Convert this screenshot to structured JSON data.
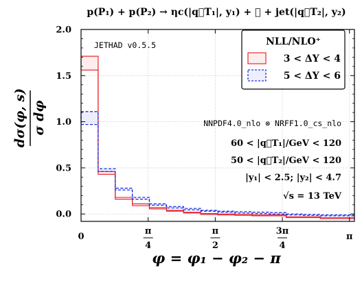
{
  "chart_data": {
    "type": "histogram-step",
    "title": "p(P₁) + p(P₂) → ηc(|q⃗T₁|, y₁) + 𝒳 + jet(|q⃗T₂|, y₂)",
    "xlabel": "φ = φ₁ − φ₂ − π",
    "ylabel_num": "dσ(φ, s)",
    "ylabel_den": "σ dφ",
    "xlim": [
      0,
      3.2
    ],
    "ylim": [
      -0.08,
      2.0
    ],
    "yticks": [
      0.0,
      0.5,
      1.0,
      1.5,
      2.0
    ],
    "ytick_labels": [
      "0.0",
      "0.5",
      "1.0",
      "1.5",
      "2.0"
    ],
    "xticks": [
      {
        "value": 0,
        "num": "0",
        "den": ""
      },
      {
        "value": 0.7854,
        "num": "π",
        "den": "4"
      },
      {
        "value": 1.5708,
        "num": "π",
        "den": "2"
      },
      {
        "value": 2.3562,
        "num": "3π",
        "den": "4"
      },
      {
        "value": 3.1416,
        "num": "π",
        "den": ""
      }
    ],
    "grid": true,
    "bin_edges": [
      0,
      0.2,
      0.4,
      0.6,
      0.8,
      1.0,
      1.2,
      1.4,
      1.6,
      1.8,
      2.0,
      2.2,
      2.4,
      2.6,
      2.8,
      3.0,
      3.2
    ],
    "legend_title": "NLL/NLO⁺",
    "legend_position": "top-right",
    "series": [
      {
        "name": "3 < ΔY < 4",
        "color": "#e8141e",
        "line": "solid",
        "upper": [
          1.71,
          0.46,
          0.18,
          0.11,
          0.07,
          0.04,
          0.02,
          0.005,
          0.0,
          -0.005,
          -0.01,
          -0.01,
          -0.03,
          -0.03,
          -0.04,
          -0.04
        ],
        "lower": [
          1.56,
          0.43,
          0.16,
          0.09,
          0.055,
          0.03,
          0.01,
          -0.005,
          -0.01,
          -0.015,
          -0.02,
          -0.02,
          -0.04,
          -0.04,
          -0.05,
          -0.05
        ]
      },
      {
        "name": "5 < ΔY < 6",
        "color": "#1f2fe6",
        "line": "dashed",
        "upper": [
          1.11,
          0.49,
          0.28,
          0.18,
          0.11,
          0.08,
          0.06,
          0.04,
          0.03,
          0.025,
          0.02,
          0.015,
          0.0,
          -0.005,
          -0.01,
          -0.01
        ],
        "lower": [
          0.97,
          0.46,
          0.26,
          0.16,
          0.095,
          0.065,
          0.045,
          0.03,
          0.02,
          0.01,
          0.005,
          0.0,
          -0.01,
          -0.015,
          -0.02,
          -0.02
        ]
      }
    ],
    "annotations": {
      "version": "JETHAD v0.5.5",
      "pdf": "NNPDF4.0_nlo ⊗ NRFF1.0_cs_nlo",
      "qt1": "60 < |q⃗T₁|/GeV < 120",
      "qt2": "50 < |q⃗T₂|/GeV < 120",
      "rap": "|y₁| < 2.5;   |y₂| < 4.7",
      "energy": "√s = 13 TeV"
    }
  }
}
